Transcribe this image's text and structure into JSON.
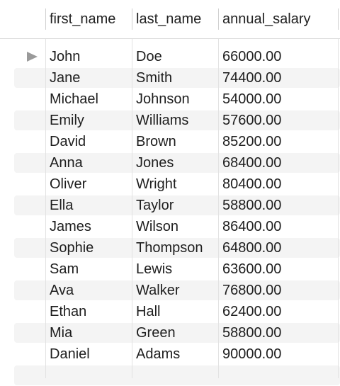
{
  "table": {
    "columns": [
      "first_name",
      "last_name",
      "annual_salary"
    ],
    "selected_row_index": 0,
    "rows": [
      [
        "John",
        "Doe",
        "66000.00"
      ],
      [
        "Jane",
        "Smith",
        "74400.00"
      ],
      [
        "Michael",
        "Johnson",
        "54000.00"
      ],
      [
        "Emily",
        "Williams",
        "57600.00"
      ],
      [
        "David",
        "Brown",
        "85200.00"
      ],
      [
        "Anna",
        "Jones",
        "68400.00"
      ],
      [
        "Oliver",
        "Wright",
        "80400.00"
      ],
      [
        "Ella",
        "Taylor",
        "58800.00"
      ],
      [
        "James",
        "Wilson",
        "86400.00"
      ],
      [
        "Sophie",
        "Thompson",
        "64800.00"
      ],
      [
        "Sam",
        "Lewis",
        "63600.00"
      ],
      [
        "Ava",
        "Walker",
        "76800.00"
      ],
      [
        "Ethan",
        "Hall",
        "62400.00"
      ],
      [
        "Mia",
        "Green",
        "58800.00"
      ],
      [
        "Daniel",
        "Adams",
        "90000.00"
      ]
    ]
  },
  "icons": {
    "current_row_marker": "play-triangle-icon"
  },
  "colors": {
    "stripe": "#f4f4f4",
    "marker": "#9a9a9a",
    "text": "#1e1e1e"
  }
}
